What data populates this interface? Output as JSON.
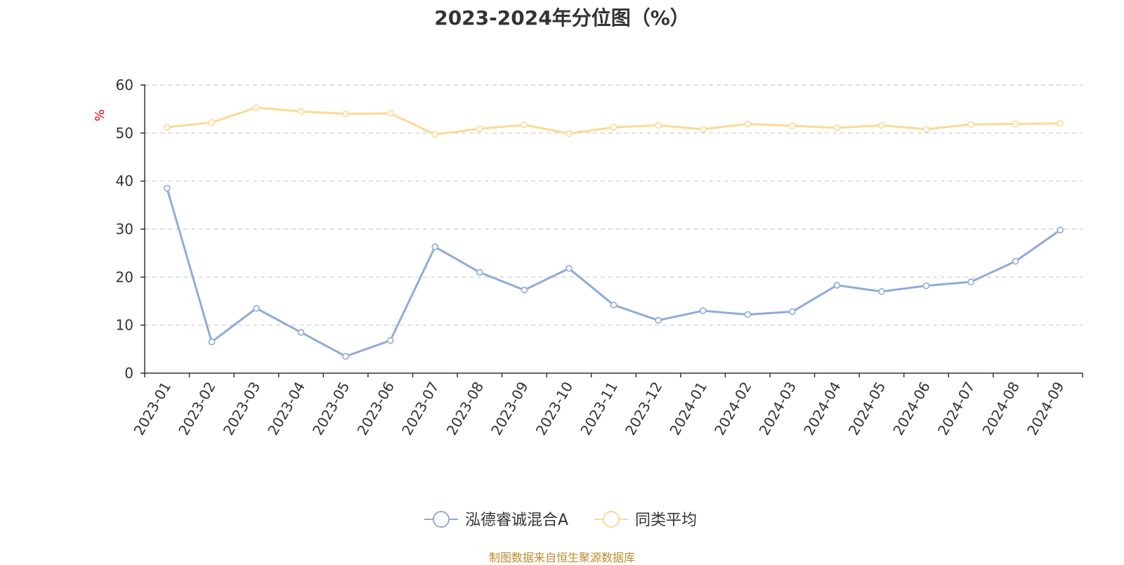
{
  "footer": {
    "source": "制图数据来自恒生聚源数据库"
  },
  "chart_data": {
    "type": "line",
    "title": "2023-2024年分位图（%）",
    "ylabel": "%",
    "xlabel": "",
    "ylim": [
      0,
      60
    ],
    "yticks": [
      0,
      10,
      20,
      30,
      40,
      50,
      60
    ],
    "grid": true,
    "legend_position": "bottom",
    "categories": [
      "2023-01",
      "2023-02",
      "2023-03",
      "2023-04",
      "2023-05",
      "2023-06",
      "2023-07",
      "2023-08",
      "2023-09",
      "2023-10",
      "2023-11",
      "2023-12",
      "2024-01",
      "2024-02",
      "2024-03",
      "2024-04",
      "2024-05",
      "2024-06",
      "2024-07",
      "2024-08",
      "2024-09"
    ],
    "series": [
      {
        "name": "泓德睿诚混合A",
        "color": "#8eacd8",
        "values": [
          38.5,
          6.5,
          13.5,
          8.5,
          3.5,
          6.8,
          26.3,
          21.0,
          17.3,
          21.8,
          14.2,
          11.0,
          13.0,
          12.2,
          12.8,
          18.3,
          17.0,
          18.2,
          19.0,
          23.3,
          29.8
        ]
      },
      {
        "name": "同类平均",
        "color": "#fcd994",
        "values": [
          51.2,
          52.2,
          55.3,
          54.5,
          54.0,
          54.1,
          49.7,
          50.9,
          51.7,
          49.9,
          51.2,
          51.6,
          50.8,
          51.9,
          51.5,
          51.1,
          51.6,
          50.8,
          51.8,
          51.9,
          52.0
        ]
      }
    ]
  }
}
